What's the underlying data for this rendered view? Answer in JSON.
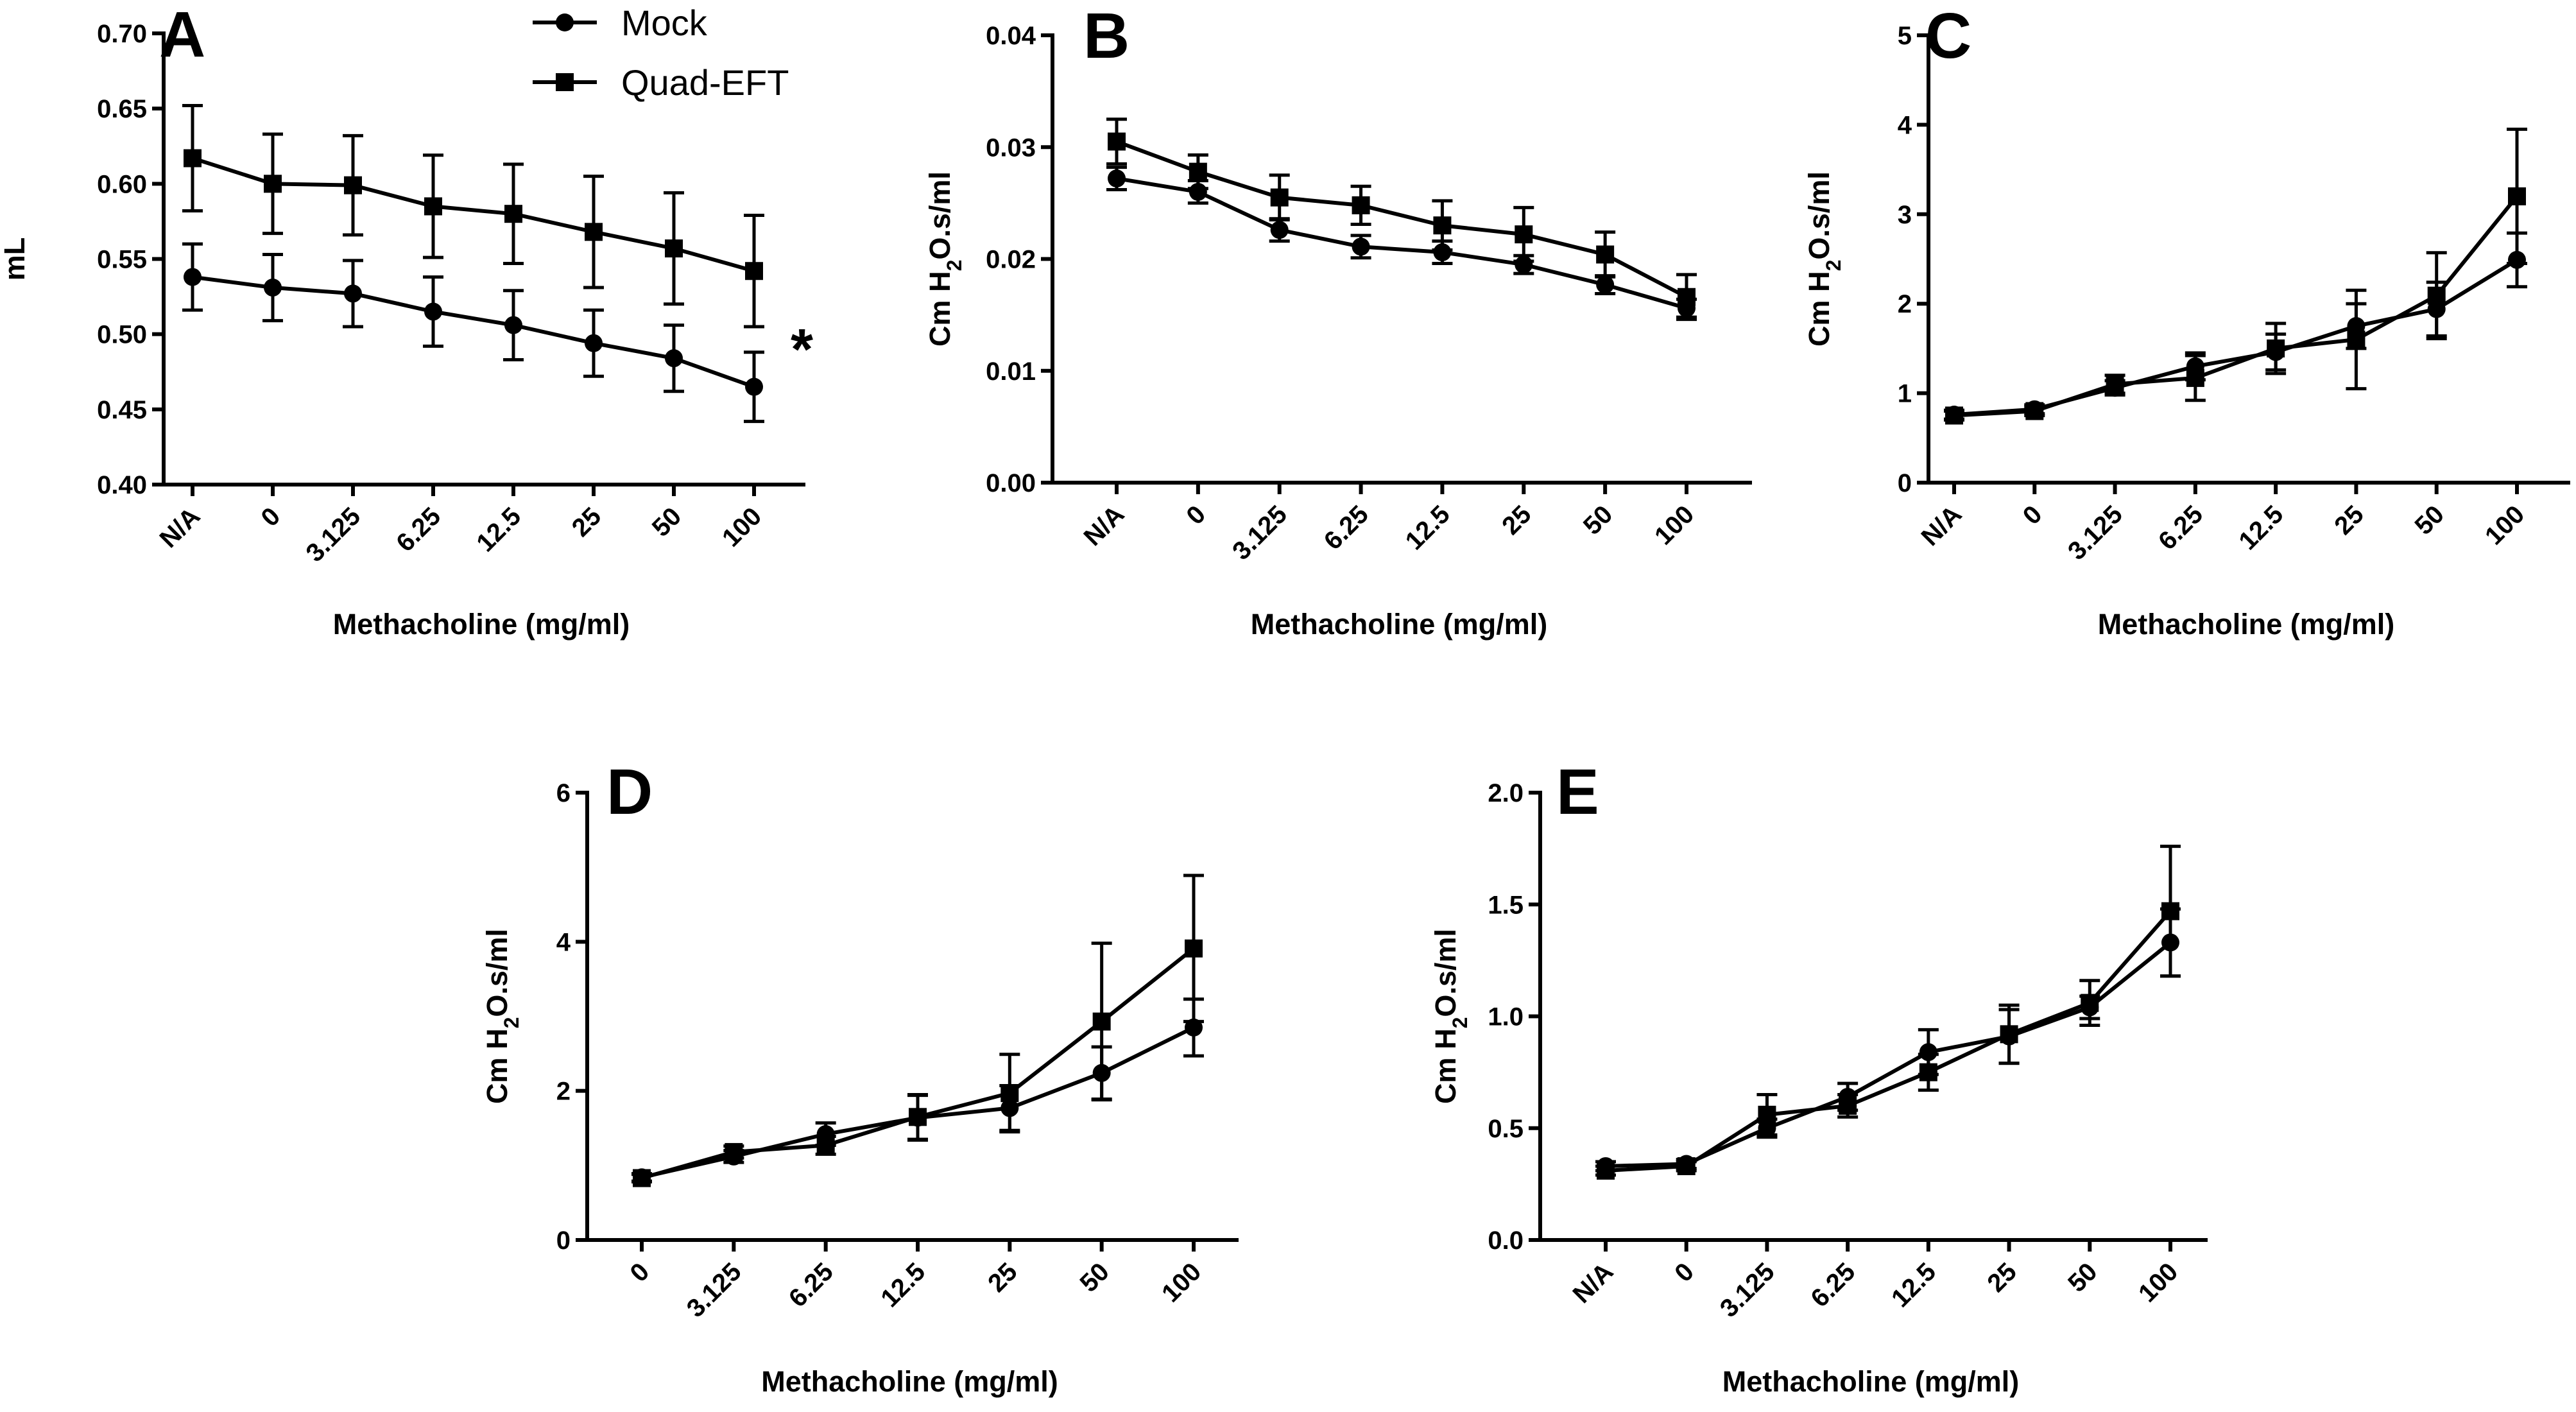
{
  "chart_data": [
    {
      "panel": "A",
      "type": "line",
      "ylabel": "mL",
      "xlabel": "Methacholine (mg/ml)",
      "categories": [
        "N/A",
        "0",
        "3.125",
        "6.25",
        "12.5",
        "25",
        "50",
        "100"
      ],
      "ylim": [
        0.4,
        0.7
      ],
      "yticks": [
        "0.40",
        "0.45",
        "0.50",
        "0.55",
        "0.60",
        "0.65",
        "0.70"
      ],
      "annotation": "*",
      "legend": {
        "position": "top",
        "entries": [
          "Mock",
          "Quad-EFT"
        ]
      },
      "series": [
        {
          "name": "Mock",
          "marker": "circle",
          "values": [
            0.538,
            0.531,
            0.527,
            0.515,
            0.506,
            0.494,
            0.484,
            0.465
          ],
          "errors": [
            0.022,
            0.022,
            0.022,
            0.023,
            0.023,
            0.022,
            0.022,
            0.023
          ]
        },
        {
          "name": "Quad-EFT",
          "marker": "square",
          "values": [
            0.617,
            0.6,
            0.599,
            0.585,
            0.58,
            0.568,
            0.557,
            0.542
          ],
          "errors": [
            0.035,
            0.033,
            0.033,
            0.034,
            0.033,
            0.037,
            0.037,
            0.037
          ]
        }
      ]
    },
    {
      "panel": "B",
      "type": "line",
      "ylabel": "Cm H2O.s/ml",
      "xlabel": "Methacholine (mg/ml)",
      "categories": [
        "N/A",
        "0",
        "3.125",
        "6.25",
        "12.5",
        "25",
        "50",
        "100"
      ],
      "ylim": [
        0.0,
        0.04
      ],
      "yticks": [
        "0.00",
        "0.01",
        "0.02",
        "0.03",
        "0.04"
      ],
      "series": [
        {
          "name": "Mock",
          "marker": "circle",
          "values": [
            0.0272,
            0.026,
            0.0226,
            0.0211,
            0.0206,
            0.0195,
            0.0177,
            0.0156
          ],
          "errors": [
            0.001,
            0.001,
            0.001,
            0.001,
            0.001,
            0.0008,
            0.0008,
            0.0008
          ]
        },
        {
          "name": "Quad-EFT",
          "marker": "square",
          "values": [
            0.0305,
            0.0278,
            0.0255,
            0.0248,
            0.023,
            0.0222,
            0.0204,
            0.0166
          ],
          "errors": [
            0.002,
            0.0015,
            0.002,
            0.0017,
            0.0022,
            0.0024,
            0.002,
            0.002
          ]
        }
      ]
    },
    {
      "panel": "C",
      "type": "line",
      "ylabel": "Cm H2O.s/ml",
      "xlabel": "Methacholine (mg/ml)",
      "categories": [
        "N/A",
        "0",
        "3.125",
        "6.25",
        "12.5",
        "25",
        "50",
        "100"
      ],
      "ylim": [
        0,
        5
      ],
      "yticks": [
        "0",
        "1",
        "2",
        "3",
        "4",
        "5"
      ],
      "series": [
        {
          "name": "Mock",
          "marker": "circle",
          "values": [
            0.76,
            0.82,
            1.06,
            1.3,
            1.46,
            1.75,
            1.94,
            2.49
          ],
          "errors": [
            0.05,
            0.05,
            0.08,
            0.15,
            0.2,
            0.25,
            0.3,
            0.3
          ]
        },
        {
          "name": "Quad-EFT",
          "marker": "square",
          "values": [
            0.75,
            0.8,
            1.1,
            1.17,
            1.5,
            1.6,
            2.09,
            3.2
          ],
          "errors": [
            0.05,
            0.05,
            0.1,
            0.25,
            0.28,
            0.55,
            0.48,
            0.75
          ]
        }
      ]
    },
    {
      "panel": "D",
      "type": "line",
      "ylabel": "Cm H2O.s/ml",
      "xlabel": "Methacholine (mg/ml)",
      "categories": [
        "0",
        "3.125",
        "6.25",
        "12.5",
        "25",
        "50",
        "100"
      ],
      "ylim": [
        0,
        6
      ],
      "yticks": [
        "0",
        "2",
        "4",
        "6"
      ],
      "series": [
        {
          "name": "Mock",
          "marker": "circle",
          "values": [
            0.84,
            1.12,
            1.42,
            1.64,
            1.77,
            2.24,
            2.85
          ],
          "errors": [
            0.05,
            0.08,
            0.15,
            0.3,
            0.3,
            0.35,
            0.38
          ]
        },
        {
          "name": "Quad-EFT",
          "marker": "square",
          "values": [
            0.83,
            1.18,
            1.27,
            1.65,
            1.97,
            2.93,
            3.91
          ],
          "errors": [
            0.05,
            0.08,
            0.12,
            0.3,
            0.52,
            1.05,
            0.98
          ]
        }
      ]
    },
    {
      "panel": "E",
      "type": "line",
      "ylabel": "Cm H2O.s/ml",
      "xlabel": "Methacholine (mg/ml)",
      "categories": [
        "N/A",
        "0",
        "3.125",
        "6.25",
        "12.5",
        "25",
        "50",
        "100"
      ],
      "ylim": [
        0.0,
        2.0
      ],
      "yticks": [
        "0.0",
        "0.5",
        "1.0",
        "1.5",
        "2.0"
      ],
      "series": [
        {
          "name": "Mock",
          "marker": "circle",
          "values": [
            0.33,
            0.34,
            0.5,
            0.64,
            0.84,
            0.91,
            1.04,
            1.33
          ],
          "errors": [
            0.02,
            0.02,
            0.04,
            0.06,
            0.1,
            0.12,
            0.05,
            0.15
          ]
        },
        {
          "name": "Quad-EFT",
          "marker": "square",
          "values": [
            0.31,
            0.33,
            0.56,
            0.6,
            0.75,
            0.92,
            1.06,
            1.47
          ],
          "errors": [
            0.02,
            0.02,
            0.09,
            0.05,
            0.08,
            0.13,
            0.1,
            0.29
          ]
        }
      ]
    }
  ]
}
